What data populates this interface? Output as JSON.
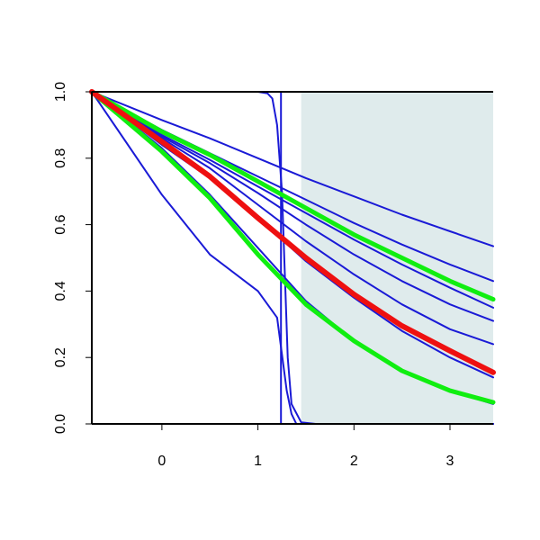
{
  "chart_data": {
    "type": "line",
    "title": "",
    "xlabel": "",
    "ylabel": "",
    "xlim": [
      -0.73,
      3.45
    ],
    "ylim": [
      0,
      1
    ],
    "x_ticks": [
      0,
      1,
      2,
      3
    ],
    "x_tick_labels": [
      "0",
      "1",
      "2",
      "3"
    ],
    "y_ticks": [
      0,
      0.2,
      0.4,
      0.6,
      0.8,
      1.0
    ],
    "y_tick_labels": [
      "0.0",
      "0.2",
      "0.4",
      "0.6",
      "0.8",
      "1.0"
    ],
    "grid": false,
    "legend": "none",
    "shaded_region": {
      "x_from": 1.45,
      "x_to": 3.45,
      "color": "#dfebec"
    },
    "colors": {
      "blue": "#1a1ad6",
      "green": "#10ee10",
      "red": "#ee1010",
      "axis": "#000000"
    },
    "series": [
      {
        "color": "#1a1ad6",
        "width": 2,
        "x": [
          -0.73,
          0.0,
          0.5,
          1.0,
          1.5,
          2.0,
          2.5,
          3.0,
          3.45
        ],
        "y": [
          1.0,
          0.915,
          0.86,
          0.8,
          0.74,
          0.685,
          0.63,
          0.58,
          0.535
        ]
      },
      {
        "color": "#1a1ad6",
        "width": 2,
        "x": [
          -0.73,
          0.0,
          0.5,
          1.0,
          1.5,
          2.0,
          2.5,
          3.0,
          3.45
        ],
        "y": [
          1.0,
          0.885,
          0.815,
          0.745,
          0.675,
          0.605,
          0.54,
          0.48,
          0.43
        ]
      },
      {
        "color": "#1a1ad6",
        "width": 2,
        "x": [
          -0.73,
          0.0,
          0.5,
          1.0,
          1.5,
          2.0,
          2.5,
          3.0,
          3.45
        ],
        "y": [
          1.0,
          0.87,
          0.795,
          0.715,
          0.635,
          0.555,
          0.48,
          0.41,
          0.35
        ]
      },
      {
        "color": "#1a1ad6",
        "width": 2,
        "x": [
          -0.73,
          0.0,
          0.5,
          1.0,
          1.5,
          2.0,
          2.5,
          3.0,
          3.45
        ],
        "y": [
          1.0,
          0.865,
          0.785,
          0.695,
          0.6,
          0.51,
          0.43,
          0.36,
          0.31
        ]
      },
      {
        "color": "#1a1ad6",
        "width": 2,
        "x": [
          -0.73,
          0.0,
          0.5,
          1.0,
          1.5,
          2.0,
          2.5,
          3.0,
          3.45
        ],
        "y": [
          1.0,
          0.86,
          0.77,
          0.66,
          0.55,
          0.45,
          0.36,
          0.285,
          0.24
        ]
      },
      {
        "color": "#1a1ad6",
        "width": 2,
        "x": [
          -0.73,
          0.0,
          0.5,
          1.0,
          1.5,
          2.0,
          2.5,
          3.0,
          3.45
        ],
        "y": [
          1.0,
          0.84,
          0.74,
          0.62,
          0.49,
          0.38,
          0.28,
          0.2,
          0.14
        ]
      },
      {
        "color": "#1a1ad6",
        "width": 2,
        "x": [
          -0.73,
          0.0,
          0.5,
          1.0,
          1.5,
          2.0,
          2.5,
          3.0,
          3.45
        ],
        "y": [
          1.0,
          0.83,
          0.69,
          0.53,
          0.37,
          0.25,
          0.16,
          0.1,
          0.06
        ]
      },
      {
        "color": "#1a1ad6",
        "width": 2,
        "x": [
          -0.73,
          0.0,
          0.5,
          1.0,
          1.2,
          1.3,
          1.35,
          1.4,
          1.5,
          2.0,
          3.45
        ],
        "y": [
          1.0,
          0.69,
          0.51,
          0.4,
          0.32,
          0.1,
          0.03,
          0.0,
          0.0,
          0.0,
          0.0
        ]
      },
      {
        "color": "#1a1ad6",
        "width": 2,
        "x": [
          -0.73,
          1.0,
          1.1,
          1.15,
          1.2,
          1.25,
          1.28,
          1.31,
          1.35,
          1.45,
          1.6,
          3.45
        ],
        "y": [
          1.0,
          1.0,
          0.995,
          0.98,
          0.9,
          0.7,
          0.45,
          0.2,
          0.06,
          0.005,
          0.0,
          0.0
        ]
      },
      {
        "color": "#1a1ad6",
        "width": 2,
        "x": [
          -0.73,
          1.2,
          1.24,
          1.24,
          3.45
        ],
        "y": [
          1.0,
          1.0,
          1.0,
          0.0,
          0.0
        ]
      },
      {
        "color": "#10ee10",
        "width": 5,
        "x": [
          -0.73,
          0.0,
          0.5,
          1.0,
          1.5,
          2.0,
          2.5,
          3.0,
          3.45
        ],
        "y": [
          1.0,
          0.88,
          0.81,
          0.73,
          0.65,
          0.57,
          0.5,
          0.43,
          0.375
        ]
      },
      {
        "color": "#10ee10",
        "width": 5,
        "x": [
          -0.73,
          0.0,
          0.5,
          1.0,
          1.5,
          2.0,
          2.5,
          3.0,
          3.45
        ],
        "y": [
          1.0,
          0.82,
          0.68,
          0.51,
          0.36,
          0.25,
          0.16,
          0.1,
          0.065
        ]
      },
      {
        "color": "#ee1010",
        "width": 6,
        "x": [
          -0.73,
          0.0,
          0.5,
          1.0,
          1.5,
          2.0,
          2.5,
          3.0,
          3.45
        ],
        "y": [
          1.0,
          0.85,
          0.745,
          0.62,
          0.5,
          0.39,
          0.295,
          0.22,
          0.155
        ]
      }
    ]
  }
}
